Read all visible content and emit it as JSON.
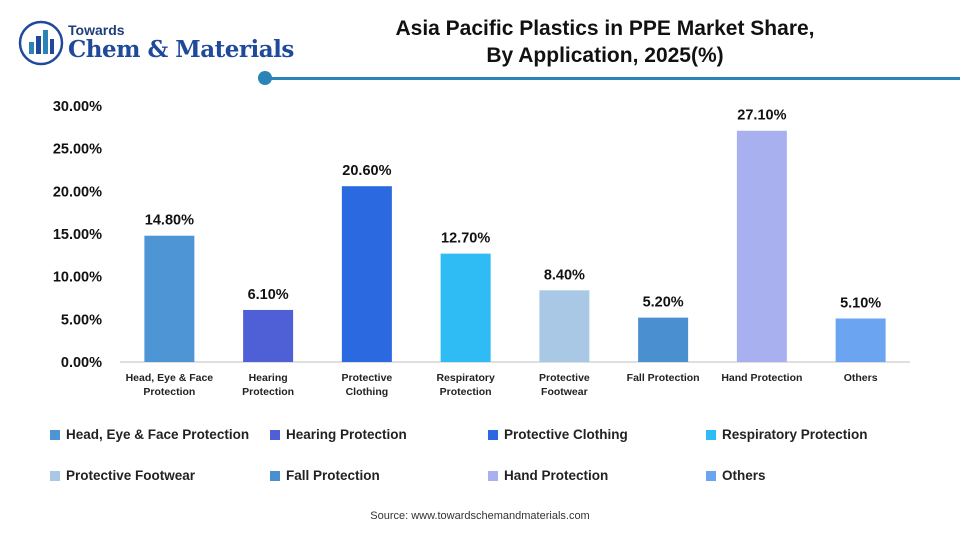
{
  "brand": {
    "top": "Towards",
    "bottom": "Chem & Materials"
  },
  "title_lines": [
    "Asia Pacific Plastics in PPE Market Share,",
    "By Application, 2025(%)"
  ],
  "source": "Source: www.towardschemandmaterials.com",
  "colors": {
    "rule": "#2a84b8",
    "axis": "#bfbfbf"
  },
  "chart_data": {
    "type": "bar",
    "title": "Asia Pacific Plastics in PPE Market Share, By Application, 2025(%)",
    "xlabel": "",
    "ylabel": "",
    "ylim": [
      0,
      30
    ],
    "y_ticks": [
      0,
      5,
      10,
      15,
      20,
      25,
      30
    ],
    "y_tick_labels": [
      "0.00%",
      "5.00%",
      "10.00%",
      "15.00%",
      "20.00%",
      "25.00%",
      "30.00%"
    ],
    "grid": false,
    "legend_position": "bottom",
    "categories": [
      "Head, Eye & Face Protection",
      "Hearing Protection",
      "Protective Clothing",
      "Respiratory Protection",
      "Protective Footwear",
      "Fall Protection",
      "Hand Protection",
      "Others"
    ],
    "category_label_lines": [
      [
        "Head, Eye & Face",
        "Protection"
      ],
      [
        "Hearing",
        "Protection"
      ],
      [
        "Protective",
        "Clothing"
      ],
      [
        "Respiratory",
        "Protection"
      ],
      [
        "Protective",
        "Footwear"
      ],
      [
        "Fall Protection"
      ],
      [
        "Hand Protection"
      ],
      [
        "Others"
      ]
    ],
    "values": [
      14.8,
      6.1,
      20.6,
      12.7,
      8.4,
      5.2,
      27.1,
      5.1
    ],
    "value_labels": [
      "14.80%",
      "6.10%",
      "20.60%",
      "12.70%",
      "8.40%",
      "5.20%",
      "27.10%",
      "5.10%"
    ],
    "colors": [
      "#4e95d5",
      "#4f5fd6",
      "#2a69e0",
      "#2fbcf5",
      "#a9c8e6",
      "#4a8fd0",
      "#a9b0f0",
      "#6ba5f2"
    ]
  }
}
